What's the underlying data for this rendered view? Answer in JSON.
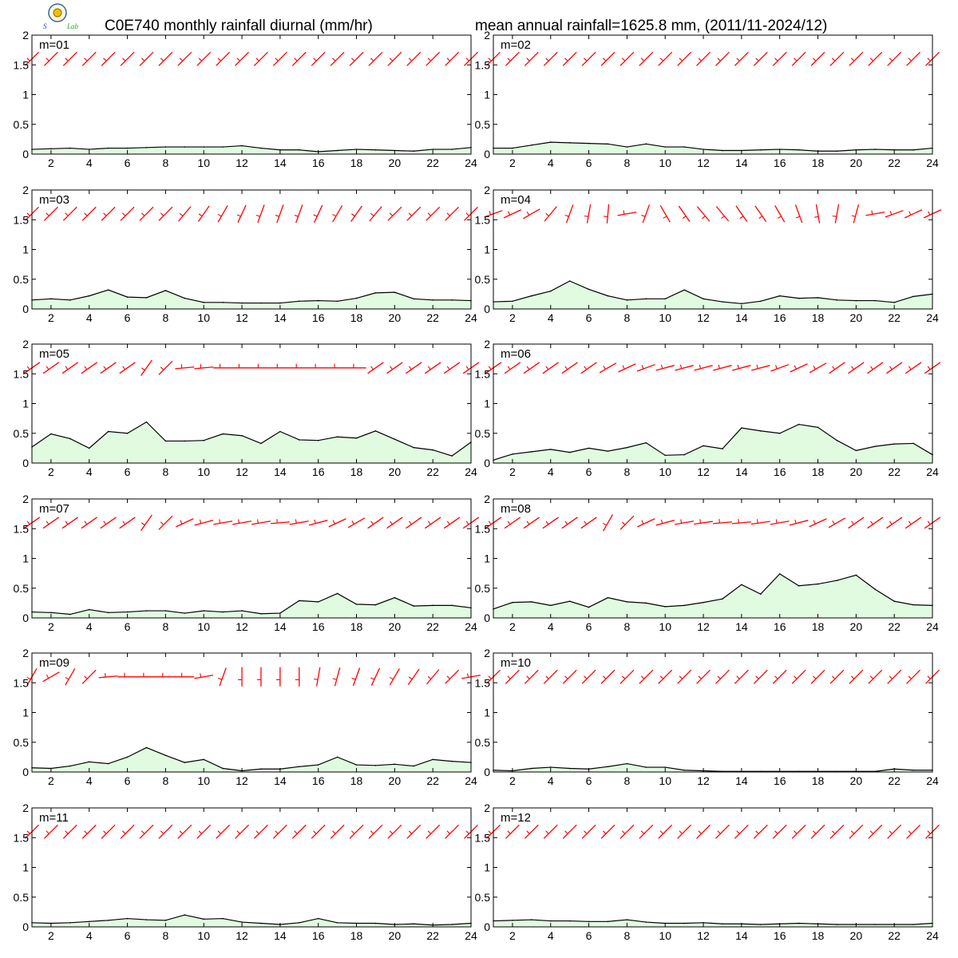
{
  "header": {
    "title_left": "C0E740 monthly rainfall diurnal (mm/hr)",
    "title_right": "mean annual rainfall=1625.8 mm, (2011/11-2024/12)"
  },
  "logo": {
    "icon": "lab-logo-icon",
    "text": "Lab"
  },
  "colors": {
    "rain_fill": "#e0fbe0",
    "rain_line": "#000000",
    "wind": "#ff0000",
    "frame": "#000000"
  },
  "chart_data": {
    "type": "area",
    "panel_layout": "6 rows x 2 columns",
    "x": [
      1,
      2,
      3,
      4,
      5,
      6,
      7,
      8,
      9,
      10,
      11,
      12,
      13,
      14,
      15,
      16,
      17,
      18,
      19,
      20,
      21,
      22,
      23,
      24
    ],
    "x_ticks": [
      2,
      4,
      6,
      8,
      10,
      12,
      14,
      16,
      18,
      20,
      22,
      24
    ],
    "x_range": [
      1,
      24
    ],
    "y_ticks": [
      0,
      0.5,
      1,
      1.5,
      2
    ],
    "y_tick_labels": [
      "0",
      "0.5",
      "1",
      "1.5",
      "2"
    ],
    "y_range": [
      0,
      2
    ],
    "grid": false,
    "wind_barbs_row_y": 1.6,
    "panels": [
      {
        "label": "m=01",
        "rain": [
          0.08,
          0.09,
          0.1,
          0.08,
          0.1,
          0.1,
          0.11,
          0.12,
          0.12,
          0.12,
          0.12,
          0.14,
          0.1,
          0.07,
          0.07,
          0.04,
          0.06,
          0.08,
          0.07,
          0.06,
          0.05,
          0.08,
          0.08,
          0.11
        ],
        "wind_dir": [
          225,
          225,
          225,
          225,
          225,
          225,
          225,
          225,
          225,
          225,
          225,
          225,
          225,
          225,
          225,
          225,
          225,
          225,
          225,
          225,
          225,
          225,
          225,
          225
        ]
      },
      {
        "label": "m=02",
        "rain": [
          0.1,
          0.1,
          0.15,
          0.2,
          0.19,
          0.18,
          0.17,
          0.12,
          0.17,
          0.12,
          0.12,
          0.08,
          0.06,
          0.06,
          0.07,
          0.08,
          0.07,
          0.05,
          0.05,
          0.07,
          0.08,
          0.07,
          0.07,
          0.1
        ],
        "wind_dir": [
          225,
          225,
          225,
          225,
          225,
          225,
          225,
          225,
          225,
          225,
          225,
          225,
          225,
          225,
          225,
          225,
          225,
          225,
          225,
          225,
          225,
          225,
          225,
          225
        ]
      },
      {
        "label": "m=03",
        "rain": [
          0.15,
          0.17,
          0.15,
          0.22,
          0.32,
          0.2,
          0.19,
          0.31,
          0.18,
          0.11,
          0.11,
          0.1,
          0.1,
          0.1,
          0.13,
          0.14,
          0.13,
          0.18,
          0.27,
          0.28,
          0.17,
          0.15,
          0.15,
          0.14
        ],
        "wind_dir": [
          225,
          225,
          225,
          225,
          225,
          225,
          225,
          225,
          220,
          215,
          210,
          205,
          200,
          200,
          200,
          205,
          210,
          215,
          220,
          225,
          225,
          225,
          225,
          225
        ]
      },
      {
        "label": "m=04",
        "rain": [
          0.12,
          0.13,
          0.22,
          0.3,
          0.47,
          0.33,
          0.22,
          0.15,
          0.17,
          0.17,
          0.32,
          0.17,
          0.12,
          0.09,
          0.13,
          0.22,
          0.18,
          0.19,
          0.15,
          0.14,
          0.14,
          0.11,
          0.21,
          0.25
        ],
        "wind_dir": [
          250,
          245,
          240,
          220,
          200,
          190,
          185,
          260,
          200,
          150,
          145,
          140,
          140,
          145,
          145,
          150,
          160,
          170,
          190,
          195,
          260,
          250,
          245,
          245
        ]
      },
      {
        "label": "m=05",
        "rain": [
          0.27,
          0.49,
          0.41,
          0.25,
          0.53,
          0.5,
          0.69,
          0.37,
          0.37,
          0.38,
          0.49,
          0.46,
          0.33,
          0.53,
          0.39,
          0.38,
          0.44,
          0.42,
          0.54,
          0.4,
          0.26,
          0.22,
          0.12,
          0.35
        ],
        "wind_dir": [
          235,
          235,
          235,
          235,
          235,
          235,
          215,
          225,
          265,
          265,
          270,
          270,
          270,
          270,
          270,
          270,
          270,
          270,
          235,
          235,
          235,
          235,
          235,
          235
        ]
      },
      {
        "label": "m=06",
        "rain": [
          0.05,
          0.15,
          0.19,
          0.23,
          0.18,
          0.25,
          0.2,
          0.26,
          0.34,
          0.13,
          0.14,
          0.29,
          0.24,
          0.59,
          0.54,
          0.5,
          0.65,
          0.6,
          0.38,
          0.21,
          0.28,
          0.32,
          0.33,
          0.14
        ],
        "wind_dir": [
          235,
          235,
          235,
          235,
          235,
          235,
          240,
          245,
          250,
          255,
          255,
          255,
          255,
          255,
          255,
          250,
          245,
          240,
          235,
          235,
          235,
          235,
          235,
          235
        ]
      },
      {
        "label": "m=07",
        "rain": [
          0.1,
          0.09,
          0.06,
          0.14,
          0.09,
          0.1,
          0.12,
          0.12,
          0.08,
          0.12,
          0.1,
          0.12,
          0.07,
          0.08,
          0.29,
          0.27,
          0.41,
          0.23,
          0.22,
          0.34,
          0.2,
          0.21,
          0.21,
          0.17
        ],
        "wind_dir": [
          235,
          235,
          235,
          235,
          235,
          235,
          215,
          225,
          245,
          255,
          260,
          260,
          260,
          265,
          260,
          255,
          245,
          240,
          235,
          235,
          235,
          235,
          235,
          235
        ]
      },
      {
        "label": "m=08",
        "rain": [
          0.15,
          0.26,
          0.27,
          0.21,
          0.28,
          0.18,
          0.34,
          0.27,
          0.25,
          0.19,
          0.21,
          0.26,
          0.32,
          0.56,
          0.4,
          0.74,
          0.54,
          0.57,
          0.63,
          0.72,
          0.48,
          0.28,
          0.22,
          0.21
        ],
        "wind_dir": [
          235,
          235,
          235,
          235,
          235,
          235,
          210,
          225,
          245,
          255,
          260,
          262,
          265,
          265,
          262,
          260,
          255,
          245,
          240,
          235,
          235,
          235,
          235,
          235
        ]
      },
      {
        "label": "m=09",
        "rain": [
          0.07,
          0.06,
          0.1,
          0.17,
          0.14,
          0.25,
          0.41,
          0.28,
          0.16,
          0.21,
          0.06,
          0.02,
          0.05,
          0.05,
          0.09,
          0.12,
          0.25,
          0.12,
          0.11,
          0.13,
          0.1,
          0.21,
          0.18,
          0.16
        ],
        "wind_dir": [
          210,
          240,
          210,
          225,
          265,
          270,
          270,
          270,
          270,
          260,
          200,
          180,
          180,
          180,
          180,
          190,
          195,
          200,
          205,
          210,
          215,
          220,
          225,
          260
        ]
      },
      {
        "label": "m=10",
        "rain": [
          0.03,
          0.02,
          0.06,
          0.08,
          0.06,
          0.05,
          0.09,
          0.14,
          0.08,
          0.08,
          0.03,
          0.02,
          0.01,
          0.01,
          0.01,
          0.01,
          0.01,
          0.01,
          0.01,
          0.01,
          0.01,
          0.05,
          0.03,
          0.03
        ],
        "wind_dir": [
          225,
          225,
          225,
          225,
          225,
          225,
          225,
          225,
          225,
          225,
          225,
          225,
          225,
          225,
          225,
          225,
          225,
          225,
          225,
          225,
          225,
          225,
          225,
          225
        ]
      },
      {
        "label": "m=11",
        "rain": [
          0.07,
          0.06,
          0.07,
          0.09,
          0.11,
          0.14,
          0.12,
          0.11,
          0.2,
          0.13,
          0.14,
          0.08,
          0.06,
          0.04,
          0.07,
          0.14,
          0.07,
          0.06,
          0.06,
          0.04,
          0.05,
          0.03,
          0.04,
          0.06
        ],
        "wind_dir": [
          225,
          225,
          225,
          225,
          225,
          225,
          225,
          225,
          225,
          225,
          225,
          225,
          225,
          225,
          225,
          225,
          225,
          225,
          225,
          225,
          225,
          225,
          225,
          225
        ]
      },
      {
        "label": "m=12",
        "rain": [
          0.1,
          0.11,
          0.12,
          0.1,
          0.1,
          0.09,
          0.09,
          0.12,
          0.08,
          0.06,
          0.06,
          0.07,
          0.05,
          0.05,
          0.04,
          0.05,
          0.06,
          0.05,
          0.04,
          0.04,
          0.04,
          0.04,
          0.04,
          0.06
        ],
        "wind_dir": [
          225,
          225,
          225,
          225,
          225,
          225,
          225,
          225,
          225,
          225,
          225,
          225,
          225,
          225,
          225,
          225,
          225,
          225,
          225,
          225,
          225,
          225,
          225,
          225
        ]
      }
    ]
  }
}
